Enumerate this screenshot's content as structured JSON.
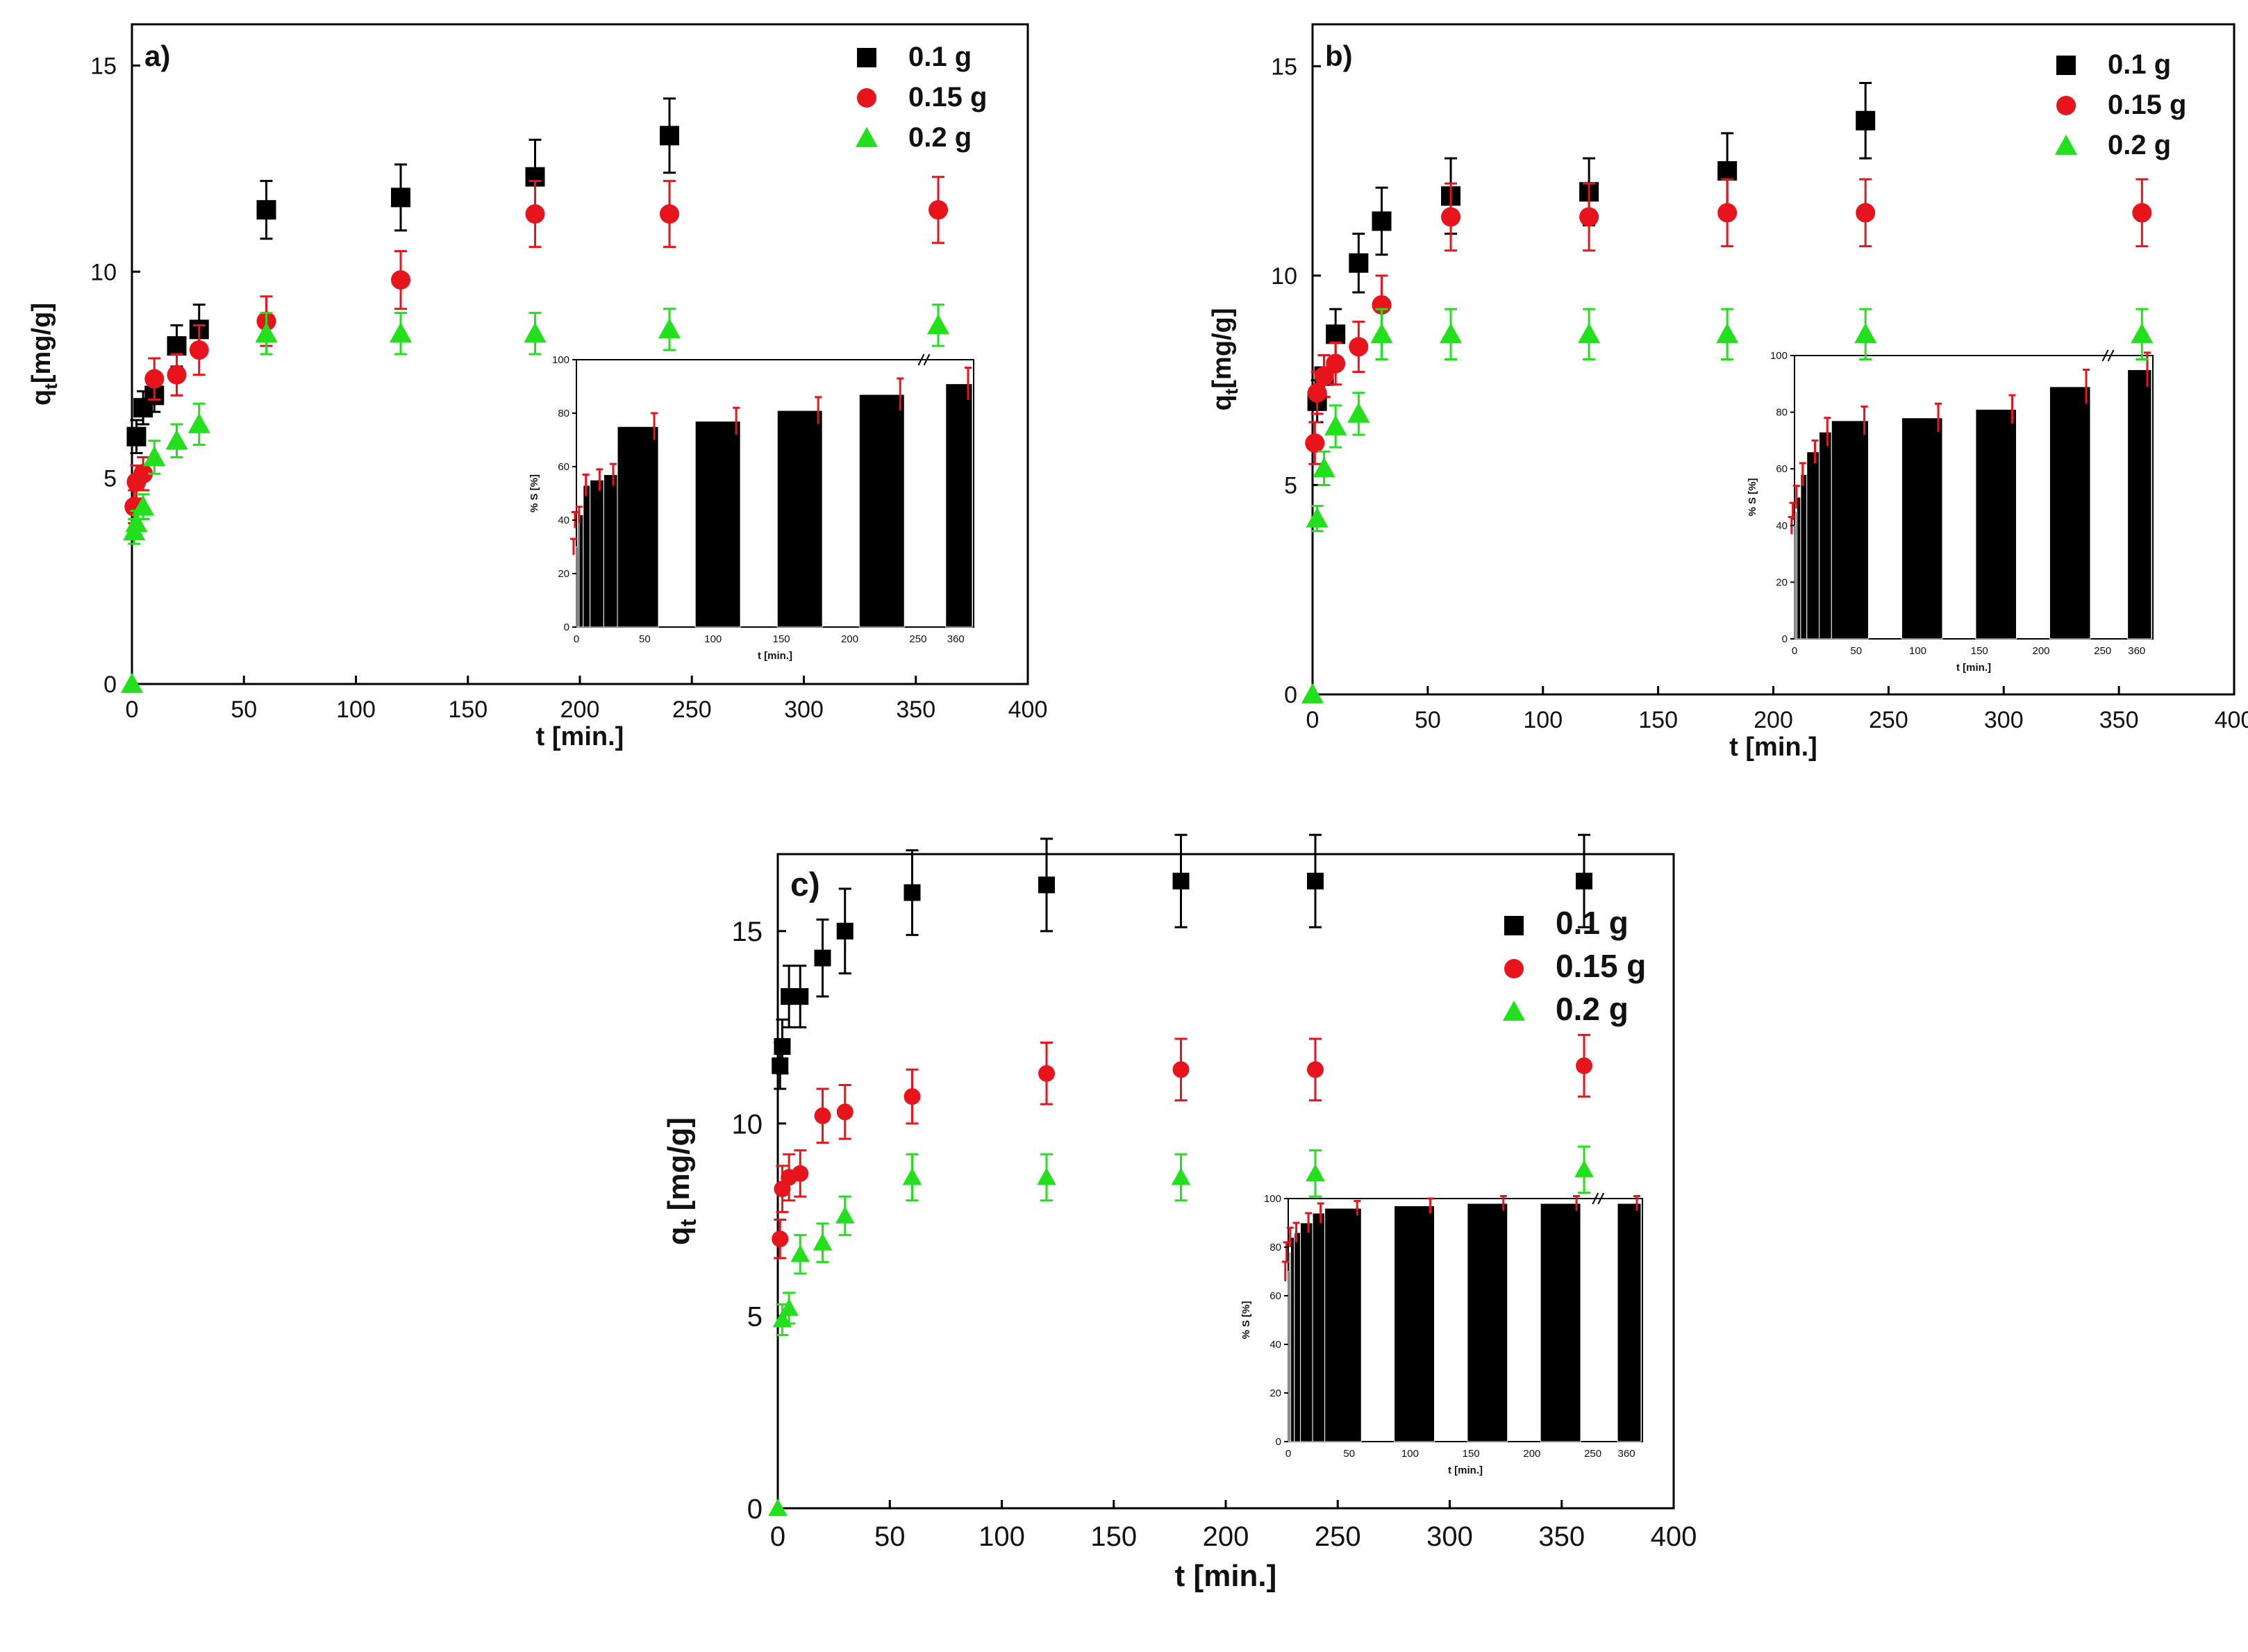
{
  "chart_data": [
    {
      "panel": "a)",
      "type": "scatter",
      "xlabel": "t [min.]",
      "ylabel": "q_t[mg/g]",
      "ylabel_main": "q",
      "ylabel_sub": "t",
      "ylabel_rest": "[mg/g]",
      "xlim": [
        0,
        400
      ],
      "ylim": [
        0,
        16
      ],
      "xticks": [
        0,
        50,
        100,
        150,
        200,
        250,
        300,
        350,
        400
      ],
      "yticks": [
        0,
        5,
        10,
        15
      ],
      "legend_position": "top-right",
      "series": [
        {
          "name": "0.1 g",
          "marker": "square",
          "color": "#000000",
          "x": [
            2,
            5,
            10,
            20,
            30,
            60,
            120,
            180,
            240
          ],
          "y": [
            6.0,
            6.7,
            7.0,
            8.2,
            8.6,
            11.5,
            11.8,
            12.3,
            13.3
          ],
          "err": [
            0.4,
            0.4,
            0.4,
            0.5,
            0.6,
            0.7,
            0.8,
            0.9,
            0.9
          ]
        },
        {
          "name": "0.15 g",
          "marker": "circle",
          "color": "#e8141b",
          "x": [
            1,
            2,
            5,
            10,
            20,
            30,
            60,
            120,
            180,
            240,
            360
          ],
          "y": [
            4.3,
            4.9,
            5.1,
            7.4,
            7.5,
            8.1,
            8.8,
            9.8,
            11.4,
            11.4,
            11.5
          ],
          "err": [
            0.4,
            0.4,
            0.4,
            0.5,
            0.5,
            0.6,
            0.6,
            0.7,
            0.8,
            0.8,
            0.8
          ]
        },
        {
          "name": "0.2 g",
          "marker": "triangle",
          "color": "#22e11c",
          "x": [
            0,
            1,
            2,
            5,
            10,
            20,
            30,
            60,
            120,
            180,
            240,
            360
          ],
          "y": [
            0.0,
            3.7,
            3.9,
            4.3,
            5.5,
            5.9,
            6.3,
            8.5,
            8.5,
            8.5,
            8.6,
            8.7
          ],
          "err": [
            0,
            0.3,
            0.3,
            0.3,
            0.4,
            0.4,
            0.5,
            0.5,
            0.5,
            0.5,
            0.5,
            0.5
          ]
        }
      ],
      "inset": {
        "type": "bar",
        "ylabel": "% S [%]",
        "xlabel": "t [min.]",
        "ylim": [
          0,
          100
        ],
        "yticks": [
          0,
          20,
          40,
          60,
          80,
          100
        ],
        "xticks": [
          "0",
          "50",
          "100",
          "150",
          "200",
          "250",
          "360"
        ],
        "x": [
          1,
          2,
          5,
          10,
          20,
          30,
          60,
          120,
          180,
          240,
          360
        ],
        "values": [
          30,
          40,
          42,
          53,
          55,
          57,
          75,
          77,
          81,
          87,
          91
        ],
        "err": [
          3,
          3,
          3,
          4,
          4,
          4,
          5,
          5,
          5,
          6,
          6
        ]
      }
    },
    {
      "panel": "b)",
      "type": "scatter",
      "xlabel": "t [min.]",
      "ylabel": "q_t[mg/g]",
      "ylabel_main": "q",
      "ylabel_sub": "t",
      "ylabel_rest": "[mg/g]",
      "xlim": [
        0,
        400
      ],
      "ylim": [
        0,
        16
      ],
      "xticks": [
        0,
        50,
        100,
        150,
        200,
        250,
        300,
        350,
        400
      ],
      "yticks": [
        0,
        5,
        10,
        15
      ],
      "legend_position": "top-right",
      "series": [
        {
          "name": "0.1 g",
          "marker": "square",
          "color": "#000000",
          "x": [
            2,
            5,
            10,
            20,
            30,
            60,
            120,
            180,
            240
          ],
          "y": [
            7.0,
            7.6,
            8.6,
            10.3,
            11.3,
            11.9,
            12.0,
            12.5,
            13.7
          ],
          "err": [
            0.5,
            0.5,
            0.6,
            0.7,
            0.8,
            0.9,
            0.8,
            0.9,
            0.9
          ]
        },
        {
          "name": "0.15 g",
          "marker": "circle",
          "color": "#e8141b",
          "x": [
            1,
            2,
            5,
            10,
            20,
            30,
            60,
            120,
            180,
            240,
            360
          ],
          "y": [
            6.0,
            7.2,
            7.6,
            7.9,
            8.3,
            9.3,
            11.4,
            11.4,
            11.5,
            11.5,
            11.5
          ],
          "err": [
            0.5,
            0.5,
            0.5,
            0.5,
            0.6,
            0.7,
            0.8,
            0.8,
            0.8,
            0.8,
            0.8
          ]
        },
        {
          "name": "0.2 g",
          "marker": "triangle",
          "color": "#22e11c",
          "x": [
            0,
            2,
            5,
            10,
            20,
            30,
            60,
            120,
            180,
            240,
            360
          ],
          "y": [
            0.0,
            4.2,
            5.4,
            6.4,
            6.7,
            8.6,
            8.6,
            8.6,
            8.6,
            8.6,
            8.6
          ],
          "err": [
            0,
            0.3,
            0.4,
            0.5,
            0.5,
            0.6,
            0.6,
            0.6,
            0.6,
            0.6,
            0.6
          ]
        }
      ],
      "inset": {
        "type": "bar",
        "ylabel": "% S [%]",
        "xlabel": "t [min.]",
        "ylim": [
          0,
          100
        ],
        "yticks": [
          0,
          20,
          40,
          60,
          80,
          100
        ],
        "xticks": [
          "0",
          "50",
          "100",
          "150",
          "200",
          "250",
          "360"
        ],
        "x": [
          1,
          2,
          5,
          10,
          20,
          30,
          60,
          120,
          180,
          240,
          360
        ],
        "values": [
          40,
          45,
          50,
          58,
          66,
          73,
          77,
          78,
          81,
          89,
          95
        ],
        "err": [
          3,
          3,
          4,
          4,
          4,
          5,
          5,
          5,
          5,
          6,
          6
        ]
      }
    },
    {
      "panel": "c)",
      "type": "scatter",
      "xlabel": "t [min.]",
      "ylabel": "q_t [mg/g]",
      "ylabel_main": "q",
      "ylabel_sub": "t",
      "ylabel_rest": " [mg/g]",
      "xlim": [
        0,
        400
      ],
      "ylim": [
        0,
        17
      ],
      "xticks": [
        0,
        50,
        100,
        150,
        200,
        250,
        300,
        350,
        400
      ],
      "yticks": [
        0,
        5,
        10,
        15
      ],
      "legend_position": "right",
      "series": [
        {
          "name": "0.1 g",
          "marker": "square",
          "color": "#000000",
          "x": [
            1,
            2,
            5,
            10,
            20,
            30,
            60,
            120,
            180,
            240,
            360
          ],
          "y": [
            11.5,
            12.0,
            13.3,
            13.3,
            14.3,
            15.0,
            16.0,
            16.2,
            16.3,
            16.3,
            16.3
          ],
          "err": [
            0.6,
            0.7,
            0.8,
            0.8,
            1.0,
            1.1,
            1.1,
            1.2,
            1.2,
            1.2,
            1.2
          ]
        },
        {
          "name": "0.15 g",
          "marker": "circle",
          "color": "#e8141b",
          "x": [
            1,
            2,
            5,
            10,
            20,
            30,
            60,
            120,
            180,
            240,
            360
          ],
          "y": [
            7.0,
            8.3,
            8.6,
            8.7,
            10.2,
            10.3,
            10.7,
            11.3,
            11.4,
            11.4,
            11.5
          ],
          "err": [
            0.5,
            0.6,
            0.6,
            0.6,
            0.7,
            0.7,
            0.7,
            0.8,
            0.8,
            0.8,
            0.8
          ]
        },
        {
          "name": "0.2 g",
          "marker": "triangle",
          "color": "#22e11c",
          "x": [
            0,
            2,
            5,
            10,
            20,
            30,
            60,
            120,
            180,
            240,
            360
          ],
          "y": [
            0.0,
            4.9,
            5.2,
            6.6,
            6.9,
            7.6,
            8.6,
            8.6,
            8.6,
            8.7,
            8.8
          ],
          "err": [
            0,
            0.4,
            0.4,
            0.5,
            0.5,
            0.5,
            0.6,
            0.6,
            0.6,
            0.6,
            0.6
          ]
        }
      ],
      "inset": {
        "type": "bar",
        "ylabel": "% S [%]",
        "xlabel": "t [min.]",
        "ylim": [
          0,
          100
        ],
        "yticks": [
          0,
          20,
          40,
          60,
          80,
          100
        ],
        "xticks": [
          "0",
          "50",
          "100",
          "150",
          "200",
          "250",
          "360"
        ],
        "x": [
          1,
          2,
          5,
          10,
          20,
          30,
          60,
          120,
          180,
          240,
          360
        ],
        "values": [
          70,
          78,
          84,
          86,
          90,
          94,
          96,
          97,
          98,
          98,
          98
        ],
        "err": [
          4,
          4,
          4,
          4,
          4,
          4,
          3,
          3,
          3,
          3,
          3
        ]
      }
    }
  ]
}
